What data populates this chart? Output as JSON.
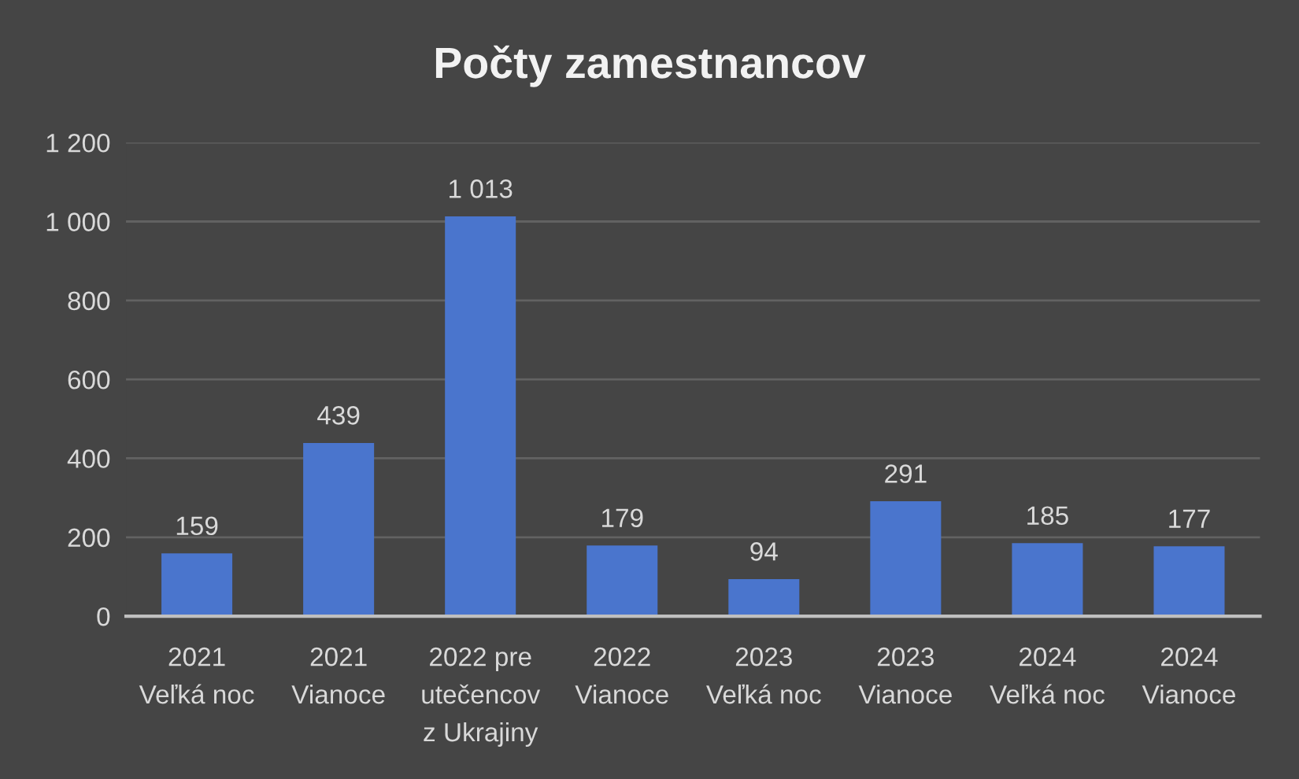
{
  "chart_data": {
    "type": "bar",
    "title": "Počty zamestnancov",
    "categories": [
      "2021\nVeľká noc",
      "2021\nVianoce",
      "2022 pre\nutečencov\nz Ukrajiny",
      "2022\nVianoce",
      "2023\nVeľká noc",
      "2023\nVianoce",
      "2024\nVeľká noc",
      "2024\nVianoce"
    ],
    "values": [
      159,
      439,
      1013,
      179,
      94,
      291,
      185,
      177
    ],
    "value_labels": [
      "159",
      "439",
      "1 013",
      "179",
      "94",
      "291",
      "185",
      "177"
    ],
    "color": "#4a75cd",
    "ylim": [
      0,
      1200
    ],
    "yticks": [
      0,
      200,
      400,
      600,
      800,
      {
        "value": 1000,
        "label": "1 000"
      },
      {
        "value": 1200,
        "label": "1 200"
      }
    ],
    "grid": "y",
    "legend": false
  }
}
